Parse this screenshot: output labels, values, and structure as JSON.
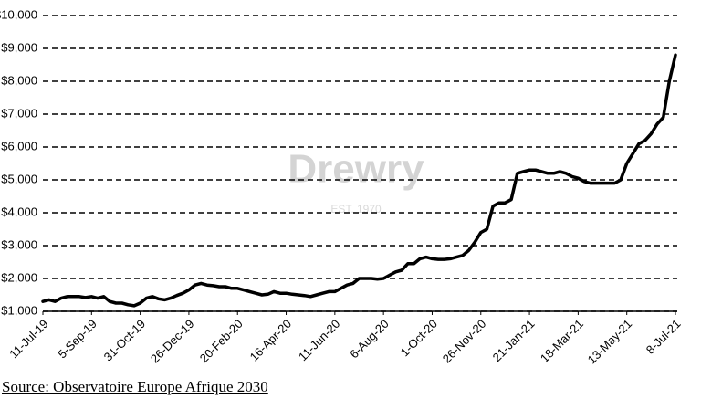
{
  "chart_data": {
    "type": "line",
    "categories": [
      "11-Jul-19",
      null,
      null,
      null,
      null,
      null,
      null,
      null,
      "5-Sep-19",
      null,
      null,
      null,
      null,
      null,
      null,
      null,
      "31-Oct-19",
      null,
      null,
      null,
      null,
      null,
      null,
      null,
      "26-Dec-19",
      null,
      null,
      null,
      null,
      null,
      null,
      null,
      "20-Feb-20",
      null,
      null,
      null,
      null,
      null,
      null,
      null,
      "16-Apr-20",
      null,
      null,
      null,
      null,
      null,
      null,
      null,
      "11-Jun-20",
      null,
      null,
      null,
      null,
      null,
      null,
      null,
      "6-Aug-20",
      null,
      null,
      null,
      null,
      null,
      null,
      null,
      "1-Oct-20",
      null,
      null,
      null,
      null,
      null,
      null,
      null,
      "26-Nov-20",
      null,
      null,
      null,
      null,
      null,
      null,
      null,
      "21-Jan-21",
      null,
      null,
      null,
      null,
      null,
      null,
      null,
      "18-Mar-21",
      null,
      null,
      null,
      null,
      null,
      null,
      null,
      "13-May-21",
      null,
      null,
      null,
      null,
      null,
      null,
      null,
      "8-Jul-21"
    ],
    "values": [
      1300,
      1350,
      1300,
      1400,
      1450,
      1450,
      1450,
      1420,
      1450,
      1400,
      1450,
      1300,
      1250,
      1250,
      1200,
      1170,
      1250,
      1400,
      1450,
      1380,
      1350,
      1400,
      1480,
      1550,
      1650,
      1800,
      1850,
      1800,
      1780,
      1750,
      1750,
      1700,
      1700,
      1650,
      1600,
      1550,
      1500,
      1520,
      1600,
      1550,
      1550,
      1520,
      1500,
      1480,
      1450,
      1500,
      1550,
      1600,
      1600,
      1700,
      1800,
      1850,
      2000,
      2000,
      2000,
      1980,
      2000,
      2100,
      2200,
      2250,
      2450,
      2450,
      2600,
      2650,
      2600,
      2580,
      2580,
      2600,
      2650,
      2700,
      2850,
      3100,
      3400,
      3500,
      4200,
      4300,
      4300,
      4400,
      5200,
      5250,
      5300,
      5300,
      5250,
      5200,
      5200,
      5250,
      5200,
      5100,
      5050,
      4950,
      4900,
      4900,
      4900,
      4900,
      4900,
      5000,
      5500,
      5800,
      6100,
      6200,
      6400,
      6700,
      6900,
      8000,
      8800
    ],
    "color": "#000000",
    "ylim": [
      1000,
      10000
    ],
    "yticks": [
      {
        "value": 1000,
        "label": "$1,000"
      },
      {
        "value": 2000,
        "label": "$2,000"
      },
      {
        "value": 3000,
        "label": "$3,000"
      },
      {
        "value": 4000,
        "label": "$4,000"
      },
      {
        "value": 5000,
        "label": "$5,000"
      },
      {
        "value": 6000,
        "label": "$6,000"
      },
      {
        "value": 7000,
        "label": "$7,000"
      },
      {
        "value": 8000,
        "label": "$8,000"
      },
      {
        "value": 9000,
        "label": "$9,000"
      },
      {
        "value": 10000,
        "label": "$10,000"
      }
    ],
    "grid": true,
    "watermark": "Drewry",
    "watermark_sub": "EST. 1970",
    "source": "Source: Observatoire Europe Afrique 2030"
  }
}
